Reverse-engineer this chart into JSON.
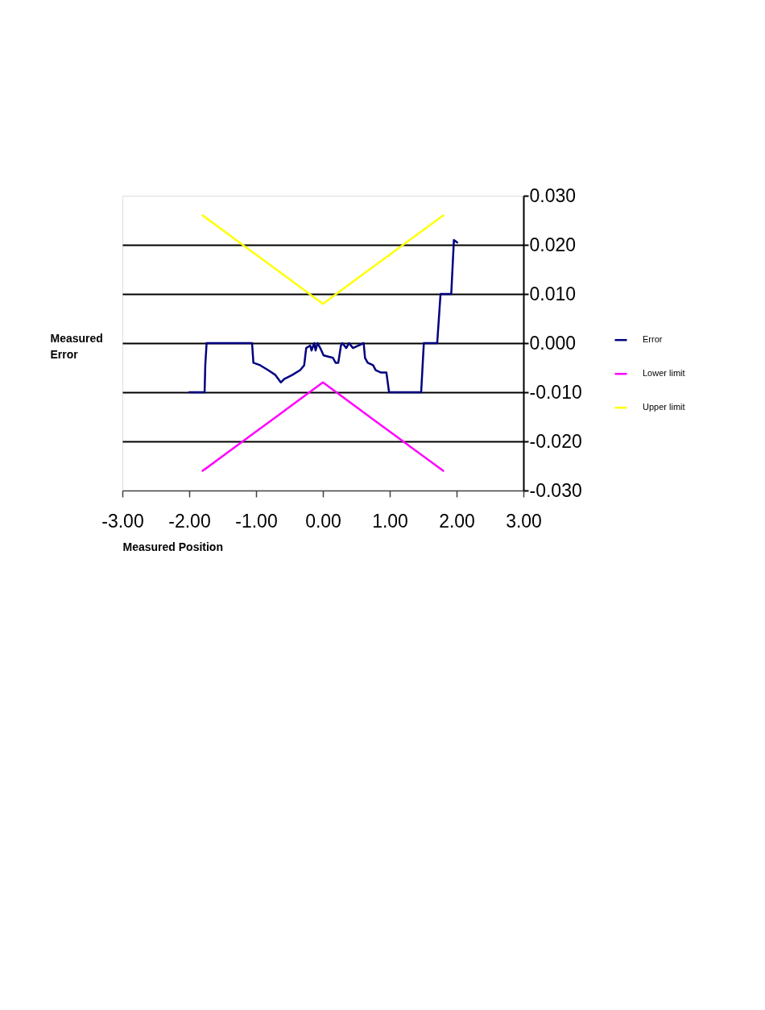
{
  "chart_data": {
    "type": "line",
    "xlabel": "Measured Position",
    "ylabel": "Measured Error",
    "xlim": [
      -3,
      3
    ],
    "xticks": [
      {
        "value": -3,
        "label": "-3.00"
      },
      {
        "value": -2,
        "label": "-2.00"
      },
      {
        "value": -1,
        "label": "-1.00"
      },
      {
        "value": 0,
        "label": "0.00"
      },
      {
        "value": 1,
        "label": "1.00"
      },
      {
        "value": 2,
        "label": "2.00"
      },
      {
        "value": 3,
        "label": "3.00"
      }
    ],
    "ylim": [
      -0.03,
      0.03
    ],
    "yticks": [
      {
        "value": -0.03,
        "label": "-0.030"
      },
      {
        "value": -0.02,
        "label": "-0.020"
      },
      {
        "value": -0.01,
        "label": "-0.010"
      },
      {
        "value": 0,
        "label": "0.000"
      },
      {
        "value": 0.01,
        "label": "0.010"
      },
      {
        "value": 0.02,
        "label": "0.020"
      },
      {
        "value": 0.03,
        "label": "0.030"
      }
    ],
    "grid": "y",
    "legend": "right",
    "line_style": "solid",
    "series": [
      {
        "name": "Error",
        "color": "#000080",
        "x": [
          -2.0,
          -1.77,
          -1.76,
          -1.74,
          -1.06,
          -1.04,
          -0.94,
          -0.82,
          -0.71,
          -0.63,
          -0.58,
          -0.46,
          -0.34,
          -0.28,
          -0.25,
          -0.19,
          -0.17,
          -0.13,
          -0.11,
          -0.08,
          -0.04,
          0.01,
          0.15,
          0.19,
          0.23,
          0.27,
          0.29,
          0.35,
          0.39,
          0.45,
          0.61,
          0.63,
          0.67,
          0.75,
          0.79,
          0.87,
          0.95,
          0.99,
          1.47,
          1.51,
          1.71,
          1.76,
          1.92,
          1.96,
          2.01
        ],
        "values": [
          -0.01,
          -0.01,
          -0.0045,
          0.0,
          0.0,
          -0.004,
          -0.0045,
          -0.0055,
          -0.0065,
          -0.008,
          -0.0073,
          -0.0065,
          -0.0055,
          -0.0045,
          -0.001,
          -0.0005,
          -0.0015,
          0.0,
          -0.0015,
          0.0,
          -0.001,
          -0.0025,
          -0.003,
          -0.004,
          -0.004,
          -0.0005,
          0.0,
          -0.001,
          0.0,
          -0.001,
          0.0,
          -0.003,
          -0.004,
          -0.0045,
          -0.0055,
          -0.006,
          -0.006,
          -0.01,
          -0.01,
          0.0,
          0.0,
          0.01,
          0.01,
          0.021,
          0.0205
        ]
      },
      {
        "name": "Lower limit",
        "color": "#ff00ff",
        "x": [
          -1.8,
          -1.2,
          -0.6,
          0,
          0.6,
          1.2,
          1.8
        ],
        "values": [
          -0.026,
          -0.02,
          -0.014,
          -0.008,
          -0.014,
          -0.02,
          -0.026
        ]
      },
      {
        "name": "Upper limit",
        "color": "#ffff00",
        "x": [
          -1.8,
          -1.2,
          -0.6,
          0,
          0.6,
          1.2,
          1.8
        ],
        "values": [
          0.026,
          0.02,
          0.014,
          0.008,
          0.014,
          0.02,
          0.026
        ]
      }
    ]
  }
}
